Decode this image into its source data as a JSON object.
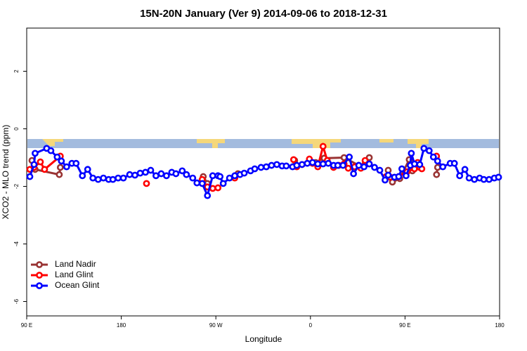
{
  "chart_data": {
    "type": "line",
    "title": "15N-20N January (Ver 9)   2014-09-06 to 2018-12-31",
    "x_label": "Longitude",
    "y_label": "XCO2 - MLO trend (ppm)",
    "xlim": [
      90,
      540
    ],
    "xticks": [
      {
        "value": 90,
        "label": "90 E"
      },
      180,
      {
        "value": 270,
        "label": "90 W"
      },
      {
        "value": 360,
        "label": "0"
      },
      {
        "value": 450,
        "label": "90 E"
      },
      {
        "value": 540,
        "label": "180"
      }
    ],
    "ylim": [
      -6.5,
      3.5
    ],
    "yticks": [
      -6,
      -4,
      -2,
      0,
      2
    ],
    "legend": "bottom-left",
    "series": [
      {
        "name": "Land Nadir",
        "color": "#993333",
        "x": [
          95,
          98,
          121,
          122,
          null,
          258,
          262,
          null,
          291,
          null,
          345,
          null,
          365,
          373,
          392,
          406,
          412,
          416,
          null,
          434,
          438,
          445,
          454,
          457,
          null,
          480,
          481
        ],
        "values": [
          -1.1,
          -1.41,
          -1.59,
          -1.34,
          null,
          -1.66,
          -1.9,
          null,
          -1.56,
          null,
          -1.1,
          null,
          -1.17,
          -1.02,
          -1.0,
          -1.27,
          -1.22,
          -1.0,
          null,
          -1.44,
          -1.85,
          -1.73,
          -1.07,
          -1.46,
          null,
          -1.59,
          -1.34
        ]
      },
      {
        "name": "Land Glint",
        "color": "#ff0000",
        "x": [
          93,
          97,
          103,
          107,
          122,
          null,
          204,
          null,
          257,
          262,
          267,
          272,
          null,
          288,
          null,
          344,
          347,
          352,
          359,
          362,
          367,
          372,
          376,
          382,
          387,
          392,
          396,
          402,
          408,
          412,
          416,
          null,
          432,
          436,
          444,
          452,
          459,
          462,
          464,
          466,
          null,
          480
        ],
        "values": [
          -1.41,
          -1.34,
          -1.15,
          -1.41,
          -0.95,
          null,
          -1.9,
          null,
          -1.76,
          -2.02,
          -2.07,
          -2.05,
          null,
          -1.71,
          null,
          -1.07,
          -1.32,
          -1.24,
          -1.05,
          -1.2,
          -1.32,
          -0.61,
          -1.1,
          -1.34,
          -1.27,
          -1.22,
          -1.37,
          -1.32,
          -1.37,
          -1.1,
          -1.22,
          null,
          -1.66,
          -1.68,
          -1.66,
          -1.49,
          -1.39,
          -1.17,
          -1.34,
          -1.39,
          null,
          -0.95
        ]
      },
      {
        "name": "Ocean Glint",
        "color": "#0000ff",
        "x": [
          93,
          97,
          98,
          109,
          113,
          119,
          123,
          128,
          133,
          137,
          143,
          148,
          153,
          158,
          163,
          168,
          172,
          177,
          182,
          188,
          193,
          198,
          203,
          208,
          213,
          218,
          223,
          228,
          232,
          238,
          242,
          248,
          252,
          257,
          262,
          267,
          272,
          274,
          277,
          283,
          288,
          293,
          297,
          303,
          307,
          313,
          318,
          323,
          328,
          333,
          337,
          343,
          347,
          352,
          357,
          362,
          367,
          372,
          377,
          382,
          386,
          391,
          397,
          401,
          406,
          411,
          416,
          421,
          426,
          431,
          434,
          440,
          444,
          447,
          451,
          455,
          456,
          459,
          464,
          468,
          473,
          477,
          481,
          486,
          493,
          497,
          502,
          507,
          511,
          516,
          521,
          525,
          530,
          535,
          539
        ],
        "values": [
          -1.66,
          -1.24,
          -0.85,
          -0.68,
          -0.76,
          -0.98,
          -1.12,
          -1.32,
          -1.2,
          -1.2,
          -1.63,
          -1.41,
          -1.71,
          -1.76,
          -1.71,
          -1.76,
          -1.76,
          -1.71,
          -1.71,
          -1.59,
          -1.61,
          -1.54,
          -1.51,
          -1.44,
          -1.63,
          -1.56,
          -1.63,
          -1.51,
          -1.56,
          -1.46,
          -1.59,
          -1.71,
          -1.88,
          -1.9,
          -2.32,
          -1.63,
          -1.63,
          -1.66,
          -1.9,
          -1.71,
          -1.63,
          -1.59,
          -1.54,
          -1.46,
          -1.39,
          -1.34,
          -1.32,
          -1.27,
          -1.24,
          -1.29,
          -1.29,
          -1.32,
          -1.27,
          -1.24,
          -1.2,
          -1.17,
          -1.22,
          -1.22,
          -1.2,
          -1.27,
          -1.27,
          -1.27,
          -0.98,
          -1.56,
          -1.27,
          -1.32,
          -1.22,
          -1.34,
          -1.44,
          -1.78,
          -1.61,
          -1.68,
          -1.66,
          -1.39,
          -1.63,
          -1.27,
          -0.85,
          -1.22,
          -1.24,
          -0.68,
          -0.76,
          -0.98,
          -1.12,
          -1.32,
          -1.2,
          -1.2,
          -1.63,
          -1.41,
          -1.71,
          -1.76,
          -1.71,
          -1.76,
          -1.76,
          -1.71,
          -1.68
        ]
      }
    ]
  }
}
